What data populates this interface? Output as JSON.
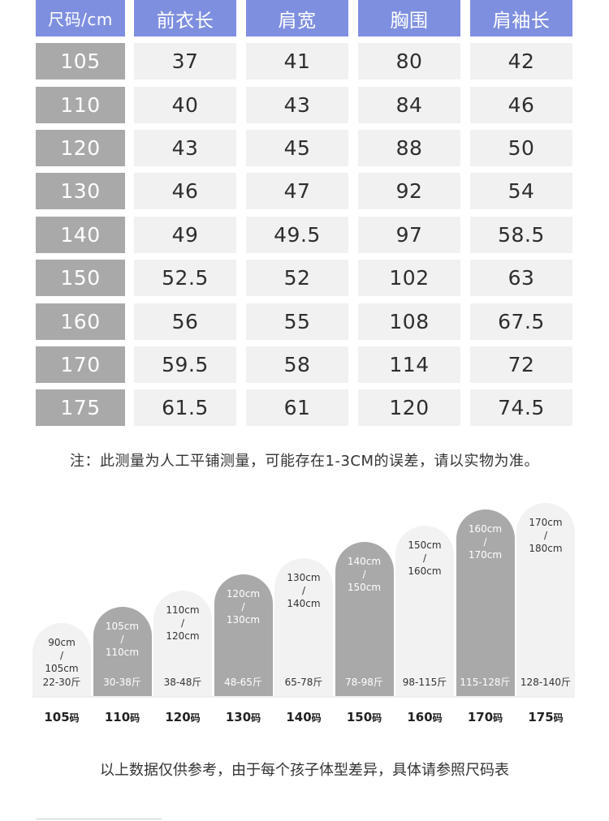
{
  "table": {
    "headers": [
      "尺码/cm",
      "前衣长",
      "肩宽",
      "胸围",
      "肩袖长"
    ],
    "rows": [
      [
        "105",
        "37",
        "41",
        "80",
        "42"
      ],
      [
        "110",
        "40",
        "43",
        "84",
        "46"
      ],
      [
        "120",
        "43",
        "45",
        "88",
        "50"
      ],
      [
        "130",
        "46",
        "47",
        "92",
        "54"
      ],
      [
        "140",
        "49",
        "49.5",
        "97",
        "58.5"
      ],
      [
        "150",
        "52.5",
        "52",
        "102",
        "63"
      ],
      [
        "160",
        "56",
        "55",
        "108",
        "67.5"
      ],
      [
        "170",
        "59.5",
        "58",
        "114",
        "72"
      ],
      [
        "175",
        "61.5",
        "61",
        "120",
        "74.5"
      ]
    ]
  },
  "note": "注：此测量为人工平铺测量，可能存在1-3CM的误差，请以实物为准。",
  "chart": {
    "items": [
      {
        "height_from": "90cm",
        "sep": "/",
        "height_to": "105cm",
        "weight": "22-30斤",
        "size": "105",
        "unit": "码",
        "style": "light"
      },
      {
        "height_from": "105cm",
        "sep": "/",
        "height_to": "110cm",
        "weight": "30-38斤",
        "size": "110",
        "unit": "码",
        "style": "dark"
      },
      {
        "height_from": "110cm",
        "sep": "/",
        "height_to": "120cm",
        "weight": "38-48斤",
        "size": "120",
        "unit": "码",
        "style": "light"
      },
      {
        "height_from": "120cm",
        "sep": "/",
        "height_to": "130cm",
        "weight": "48-65斤",
        "size": "130",
        "unit": "码",
        "style": "dark"
      },
      {
        "height_from": "130cm",
        "sep": "/",
        "height_to": "140cm",
        "weight": "65-78斤",
        "size": "140",
        "unit": "码",
        "style": "light"
      },
      {
        "height_from": "140cm",
        "sep": "/",
        "height_to": "150cm",
        "weight": "78-98斤",
        "size": "150",
        "unit": "码",
        "style": "dark"
      },
      {
        "height_from": "150cm",
        "sep": "/",
        "height_to": "160cm",
        "weight": "98-115斤",
        "size": "160",
        "unit": "码",
        "style": "light"
      },
      {
        "height_from": "160cm",
        "sep": "/",
        "height_to": "170cm",
        "weight": "115-128斤",
        "size": "170",
        "unit": "码",
        "style": "dark"
      },
      {
        "height_from": "170cm",
        "sep": "/",
        "height_to": "180cm",
        "weight": "128-140斤",
        "size": "175",
        "unit": "码",
        "style": "light"
      }
    ]
  },
  "footer": "以上数据仅供参考，由于每个孩子体型差异，具体请参照尺码表",
  "colors": {
    "header_bg": "#7f8fe0",
    "size_col_bg": "#a9a9a9",
    "cell_bg": "#f1f1f1"
  }
}
